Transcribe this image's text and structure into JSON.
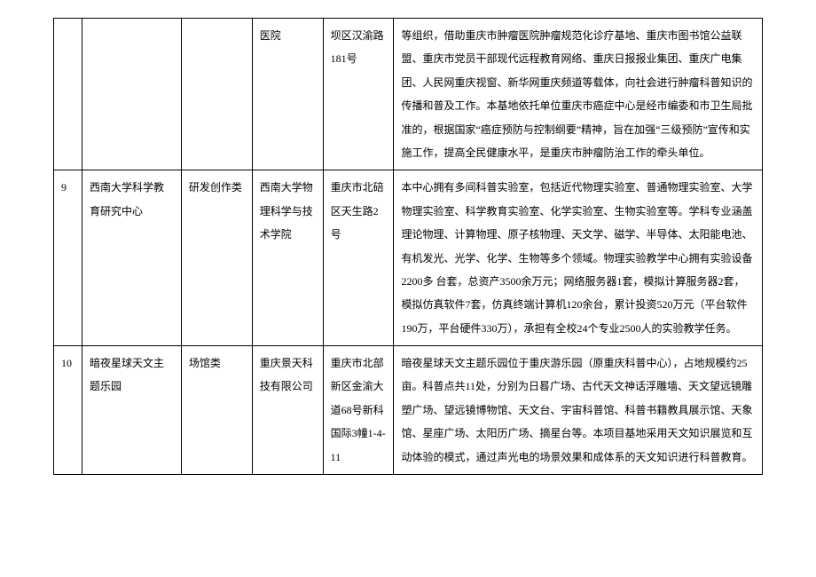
{
  "rows": [
    {
      "id": "",
      "name": "",
      "category": "",
      "org": "医院",
      "address": "坝区汉渝路181号",
      "desc": "等组织，借助重庆市肿瘤医院肿瘤规范化诊疗基地、重庆市图书馆公益联盟、重庆市党员干部现代远程教育网络、重庆日报报业集团、重庆广电集团、人民网重庆视窗、新华网重庆频道等载体，向社会进行肿瘤科普知识的传播和普及工作。本基地依托单位重庆市癌症中心是经市编委和市卫生局批准的，根据国家“癌症预防与控制纲要”精神，旨在加强“三级预防”宣传和实施工作，提高全民健康水平，是重庆市肿瘤防治工作的牵头单位。"
    },
    {
      "id": "9",
      "name": "西南大学科学教育研究中心",
      "category": "研发创作类",
      "org": "西南大学物理科学与技术学院",
      "address": "重庆市北碚区天生路2号",
      "desc": "本中心拥有多间科普实验室，包括近代物理实验室、普通物理实验室、大学物理实验室、科学教育实验室、化学实验室、生物实验室等。学科专业涵盖理论物理、计算物理、原子核物理、天文学、磁学、半导体、太阳能电池、有机发光、光学、化学、生物等多个领域。物理实验教学中心拥有实验设备2200多\n台套，总资产3500余万元；网络服务器1套，模拟计算服务器2套，模拟仿真软件7套，仿真终端计算机120余台，累计投资520万元（平台软件190万，平台硬件330万），承担有全校24个专业2500人的实验教学任务。"
    },
    {
      "id": "10",
      "name": "暗夜星球天文主题乐园",
      "category": "场馆类",
      "org": "重庆景天科技有限公司",
      "address": "重庆市北部新区金渝大道68号新科国际3幢1-4-11",
      "desc": "暗夜星球天文主题乐园位于重庆游乐园（原重庆科普中心），占地规模约25亩。科普点共11处，分别为日晷广场、古代天文神话浮雕墙、天文望远镜雕塑广场、望远镜博物馆、天文台、宇宙科普馆、科普书籍教具展示馆、天象馆、星座广场、太阳历广场、摘星台等。本项目基地采用天文知识展览和互动体验的模式，通过声光电的场景效果和成体系的天文知识进行科普教育。"
    }
  ]
}
